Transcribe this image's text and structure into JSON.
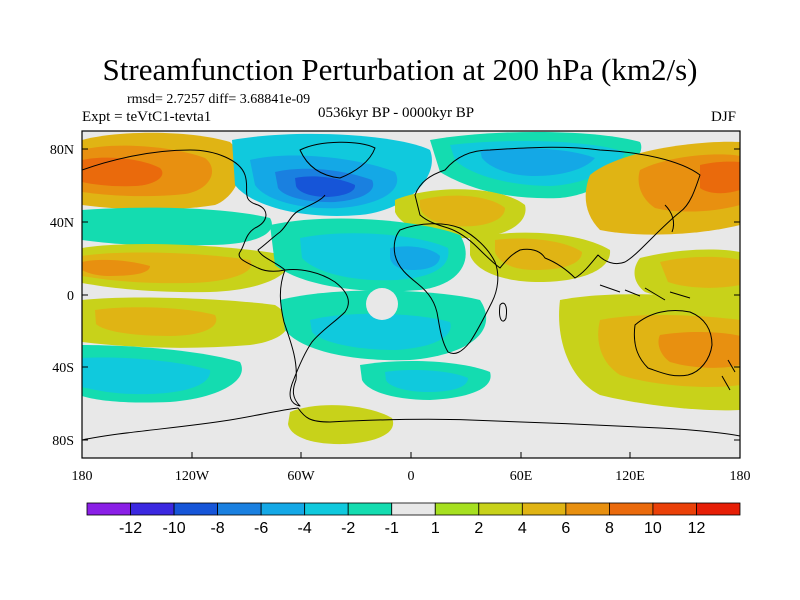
{
  "title": "Streamfunction Perturbation at 200 hPa (km2/s)",
  "stats_line": "rmsd= 2.7257 diff= 3.68841e-09",
  "experiment": "Expt = teVtC1-tevta1",
  "period": "0536kyr BP - 0000kyr BP",
  "season": "DJF",
  "lat_ticks": [
    "80N",
    "40N",
    "0",
    "40S",
    "80S"
  ],
  "lon_ticks": [
    "180",
    "120W",
    "60W",
    "0",
    "60E",
    "120E",
    "180"
  ],
  "colorbar": {
    "labels": [
      "-12",
      "-10",
      "-8",
      "-6",
      "-4",
      "-2",
      "-1",
      "1",
      "2",
      "4",
      "6",
      "8",
      "10",
      "12"
    ],
    "colors": [
      "#8a1fe6",
      "#3b28e0",
      "#1655d8",
      "#1a80e0",
      "#14a8e6",
      "#10c9dd",
      "#14dcb0",
      "#e8e8e8",
      "#a6e020",
      "#c8d21a",
      "#e0b414",
      "#e89010",
      "#ea6a0c",
      "#ea4008",
      "#e61e06"
    ]
  },
  "colors": {
    "ocean": "#e8e8e8",
    "coast": "#000000"
  }
}
